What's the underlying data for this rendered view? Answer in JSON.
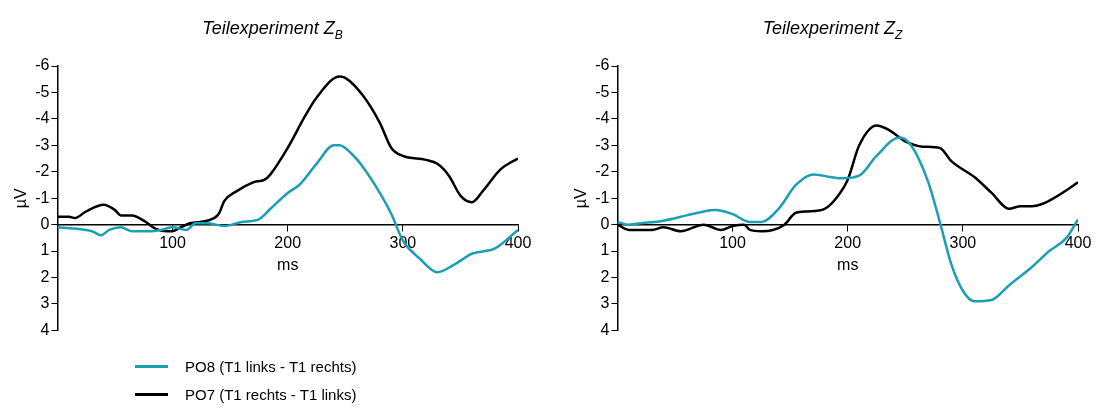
{
  "chart_data": [
    {
      "type": "line",
      "title": "Teilexperiment Z$_{B}$",
      "xlabel": "ms",
      "ylabel": "µV",
      "xlim": [
        0,
        400
      ],
      "xticks": [
        {
          "value": 0,
          "label": null
        },
        100,
        200,
        300,
        400
      ],
      "ylim": [
        4,
        -6
      ],
      "yticks": [
        -6,
        -5,
        -4,
        -3,
        -2,
        -1,
        0,
        1,
        2,
        3,
        4
      ],
      "grid": false,
      "legend": "bottom",
      "marker": "none",
      "line_style": "solid",
      "series": [
        {
          "name": "PO8 (T1 links - T1 rechts)",
          "color": "#1a9fb5",
          "x": [
            0,
            15,
            30,
            38,
            45,
            55,
            65,
            80,
            90,
            100,
            112,
            120,
            130,
            145,
            160,
            175,
            185,
            200,
            210,
            225,
            240,
            245,
            255,
            265,
            280,
            290,
            300,
            315,
            330,
            345,
            360,
            380,
            400
          ],
          "values": [
            0.1,
            0.15,
            0.25,
            0.4,
            0.2,
            0.1,
            0.25,
            0.25,
            0.2,
            0.1,
            0.2,
            -0.05,
            -0.05,
            0.05,
            -0.1,
            -0.2,
            -0.6,
            -1.2,
            -1.5,
            -2.3,
            -3.0,
            -3.0,
            -2.7,
            -2.2,
            -1.2,
            -0.4,
            0.6,
            1.3,
            1.8,
            1.5,
            1.1,
            0.9,
            0.2
          ]
        },
        {
          "name": "PO7 (T1 rechts - T1 links)",
          "color": "#000000",
          "x": [
            0,
            10,
            15,
            25,
            40,
            50,
            55,
            65,
            75,
            85,
            95,
            100,
            105,
            115,
            130,
            140,
            145,
            155,
            170,
            180,
            185,
            200,
            215,
            225,
            245,
            250,
            265,
            280,
            290,
            300,
            320,
            330,
            340,
            350,
            360,
            370,
            385,
            400
          ],
          "values": [
            -0.3,
            -0.3,
            -0.25,
            -0.5,
            -0.75,
            -0.55,
            -0.35,
            -0.35,
            -0.15,
            0.15,
            0.25,
            0.25,
            0.15,
            -0.05,
            -0.15,
            -0.4,
            -0.9,
            -1.25,
            -1.6,
            -1.7,
            -1.9,
            -2.9,
            -4.1,
            -4.8,
            -5.6,
            -5.55,
            -4.9,
            -3.85,
            -2.9,
            -2.6,
            -2.45,
            -2.3,
            -1.85,
            -1.1,
            -0.85,
            -1.3,
            -2.1,
            -2.5
          ]
        }
      ]
    },
    {
      "type": "line",
      "title": "Teilexperiment Z$_{Z}$",
      "xlabel": "ms",
      "ylabel": "µV",
      "xlim": [
        0,
        400
      ],
      "xticks": [
        {
          "value": 0,
          "label": null
        },
        100,
        200,
        300,
        400
      ],
      "ylim": [
        4,
        -6
      ],
      "yticks": [
        -6,
        -5,
        -4,
        -3,
        -2,
        -1,
        0,
        1,
        2,
        3,
        4
      ],
      "grid": false,
      "marker": "none",
      "line_style": "solid",
      "series": [
        {
          "color": "#1a9fb5",
          "x": [
            0,
            10,
            20,
            40,
            60,
            75,
            85,
            100,
            115,
            125,
            140,
            155,
            170,
            185,
            195,
            210,
            225,
            245,
            255,
            270,
            280,
            290,
            300,
            310,
            325,
            340,
            360,
            375,
            390,
            400
          ],
          "values": [
            -0.1,
            0.0,
            -0.05,
            -0.15,
            -0.35,
            -0.5,
            -0.55,
            -0.4,
            -0.1,
            -0.1,
            -0.6,
            -1.5,
            -1.9,
            -1.8,
            -1.75,
            -1.85,
            -2.6,
            -3.3,
            -3.0,
            -1.6,
            -0.1,
            1.5,
            2.5,
            2.9,
            2.85,
            2.3,
            1.6,
            1.0,
            0.5,
            -0.2
          ]
        },
        {
          "color": "#000000",
          "x": [
            0,
            10,
            30,
            40,
            55,
            75,
            90,
            100,
            110,
            115,
            125,
            135,
            145,
            155,
            165,
            180,
            190,
            200,
            210,
            225,
            235,
            250,
            265,
            280,
            290,
            310,
            325,
            340,
            350,
            360,
            370,
            390,
            400
          ],
          "values": [
            0,
            0.2,
            0.2,
            0.1,
            0.25,
            0.0,
            0.2,
            0.05,
            0.0,
            0.2,
            0.25,
            0.2,
            0,
            -0.45,
            -0.5,
            -0.6,
            -1.0,
            -1.7,
            -3.0,
            -3.75,
            -3.6,
            -3.15,
            -2.95,
            -2.9,
            -2.4,
            -1.8,
            -1.2,
            -0.6,
            -0.7,
            -0.7,
            -0.8,
            -1.3,
            -1.6
          ]
        }
      ]
    }
  ]
}
